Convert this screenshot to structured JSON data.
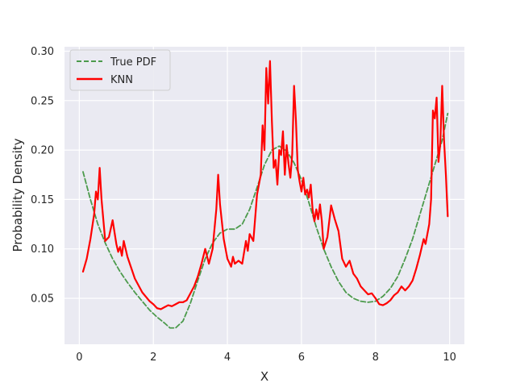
{
  "chart_data": {
    "type": "line",
    "xlabel": "X",
    "ylabel": "Probability Density",
    "xlim": [
      -0.4,
      10.4
    ],
    "ylim": [
      0.0035,
      0.3045
    ],
    "xticks": [
      0,
      2,
      4,
      6,
      8,
      10
    ],
    "yticks": [
      0.05,
      0.1,
      0.15,
      0.2,
      0.25,
      0.3
    ],
    "ytick_labels": [
      "0.05",
      "0.10",
      "0.15",
      "0.20",
      "0.25",
      "0.30"
    ],
    "grid": true,
    "legend_position": "top-left",
    "background": "#eaeaf2",
    "series": [
      {
        "name": "True PDF",
        "color": "#4c9a4c",
        "dash": true,
        "x": [
          0.1,
          0.3,
          0.5,
          0.7,
          0.9,
          1.1,
          1.3,
          1.5,
          1.7,
          1.9,
          2.1,
          2.3,
          2.45,
          2.6,
          2.8,
          3.0,
          3.2,
          3.4,
          3.6,
          3.8,
          4.0,
          4.2,
          4.4,
          4.6,
          4.8,
          5.0,
          5.2,
          5.4,
          5.6,
          5.8,
          6.0,
          6.2,
          6.4,
          6.6,
          6.8,
          7.0,
          7.2,
          7.4,
          7.6,
          7.8,
          8.0,
          8.2,
          8.4,
          8.6,
          8.8,
          9.0,
          9.2,
          9.4,
          9.6,
          9.8,
          9.95
        ],
        "y": [
          0.178,
          0.15,
          0.125,
          0.106,
          0.09,
          0.077,
          0.066,
          0.056,
          0.047,
          0.038,
          0.031,
          0.025,
          0.02,
          0.02,
          0.027,
          0.045,
          0.068,
          0.09,
          0.106,
          0.116,
          0.12,
          0.12,
          0.125,
          0.14,
          0.162,
          0.185,
          0.2,
          0.204,
          0.199,
          0.187,
          0.17,
          0.147,
          0.122,
          0.1,
          0.082,
          0.067,
          0.056,
          0.05,
          0.047,
          0.046,
          0.047,
          0.052,
          0.06,
          0.072,
          0.09,
          0.11,
          0.135,
          0.16,
          0.185,
          0.21,
          0.237
        ]
      },
      {
        "name": "KNN",
        "color": "#ff0000",
        "dash": false,
        "x": [
          0.1,
          0.2,
          0.3,
          0.4,
          0.45,
          0.5,
          0.55,
          0.6,
          0.7,
          0.8,
          0.9,
          1.0,
          1.05,
          1.1,
          1.15,
          1.2,
          1.3,
          1.5,
          1.7,
          1.9,
          2.0,
          2.1,
          2.2,
          2.3,
          2.4,
          2.5,
          2.6,
          2.7,
          2.8,
          2.9,
          3.0,
          3.1,
          3.2,
          3.3,
          3.4,
          3.5,
          3.6,
          3.7,
          3.75,
          3.8,
          3.9,
          4.0,
          4.1,
          4.15,
          4.2,
          4.3,
          4.4,
          4.5,
          4.55,
          4.6,
          4.7,
          4.8,
          4.9,
          4.95,
          5.0,
          5.05,
          5.1,
          5.15,
          5.2,
          5.25,
          5.3,
          5.35,
          5.4,
          5.45,
          5.5,
          5.55,
          5.6,
          5.65,
          5.7,
          5.75,
          5.8,
          5.85,
          5.9,
          5.95,
          6.0,
          6.05,
          6.1,
          6.15,
          6.2,
          6.25,
          6.3,
          6.35,
          6.4,
          6.45,
          6.5,
          6.55,
          6.6,
          6.7,
          6.8,
          6.9,
          7.0,
          7.1,
          7.2,
          7.3,
          7.4,
          7.5,
          7.6,
          7.7,
          7.8,
          7.9,
          8.0,
          8.1,
          8.2,
          8.3,
          8.4,
          8.5,
          8.6,
          8.7,
          8.8,
          8.9,
          9.0,
          9.1,
          9.2,
          9.3,
          9.35,
          9.4,
          9.45,
          9.5,
          9.55,
          9.6,
          9.65,
          9.7,
          9.75,
          9.8,
          9.85,
          9.9,
          9.95
        ],
        "y": [
          0.077,
          0.09,
          0.11,
          0.135,
          0.158,
          0.15,
          0.182,
          0.15,
          0.108,
          0.112,
          0.129,
          0.105,
          0.097,
          0.102,
          0.093,
          0.108,
          0.092,
          0.07,
          0.056,
          0.047,
          0.044,
          0.04,
          0.039,
          0.041,
          0.043,
          0.042,
          0.044,
          0.046,
          0.046,
          0.048,
          0.055,
          0.062,
          0.072,
          0.085,
          0.1,
          0.085,
          0.1,
          0.14,
          0.175,
          0.145,
          0.11,
          0.09,
          0.082,
          0.092,
          0.085,
          0.088,
          0.085,
          0.108,
          0.098,
          0.115,
          0.108,
          0.155,
          0.175,
          0.225,
          0.2,
          0.283,
          0.247,
          0.29,
          0.23,
          0.182,
          0.19,
          0.165,
          0.2,
          0.195,
          0.219,
          0.175,
          0.205,
          0.186,
          0.172,
          0.196,
          0.265,
          0.23,
          0.18,
          0.168,
          0.158,
          0.172,
          0.155,
          0.16,
          0.152,
          0.165,
          0.14,
          0.128,
          0.14,
          0.13,
          0.145,
          0.128,
          0.1,
          0.112,
          0.144,
          0.13,
          0.118,
          0.09,
          0.082,
          0.088,
          0.075,
          0.07,
          0.062,
          0.058,
          0.054,
          0.055,
          0.05,
          0.044,
          0.043,
          0.045,
          0.048,
          0.053,
          0.056,
          0.062,
          0.058,
          0.062,
          0.068,
          0.08,
          0.094,
          0.11,
          0.105,
          0.115,
          0.125,
          0.15,
          0.24,
          0.232,
          0.253,
          0.188,
          0.207,
          0.265,
          0.21,
          0.175,
          0.133
        ]
      }
    ]
  }
}
